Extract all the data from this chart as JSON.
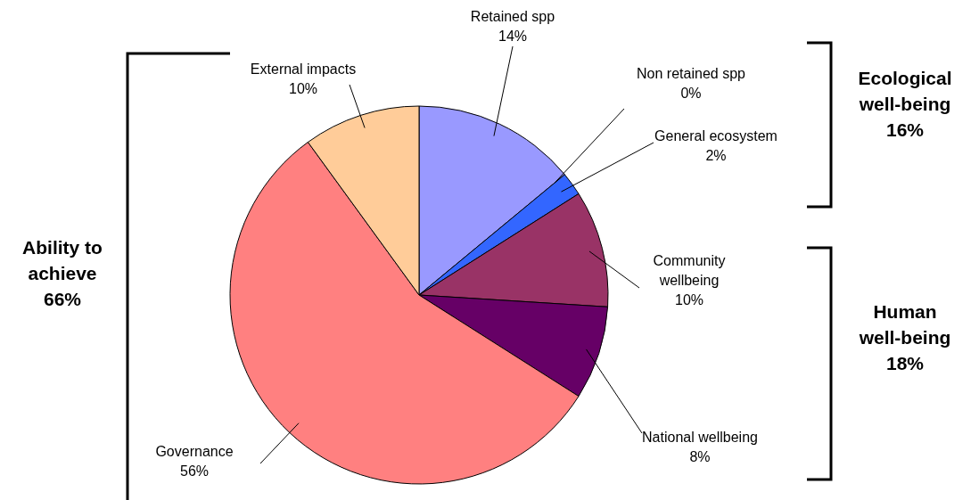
{
  "chart_data": {
    "type": "pie",
    "categories": [
      "Retained spp",
      "Non retained spp",
      "General ecosystem",
      "Community wellbeing",
      "National wellbeing",
      "Governance",
      "External impacts"
    ],
    "values": [
      14,
      0,
      2,
      10,
      8,
      56,
      10
    ],
    "value_labels": [
      "14%",
      "0%",
      "2%",
      "10%",
      "8%",
      "56%",
      "10%"
    ],
    "colors": [
      "#9999ff",
      null,
      "#3366ff",
      "#993366",
      "#660066",
      "#ff8080",
      "#ffcc99"
    ],
    "annotations": [
      "Ecological\nwell-being\n16%",
      "Human\nwell-being\n18%",
      "Ability to\nachieve\n66%"
    ]
  }
}
